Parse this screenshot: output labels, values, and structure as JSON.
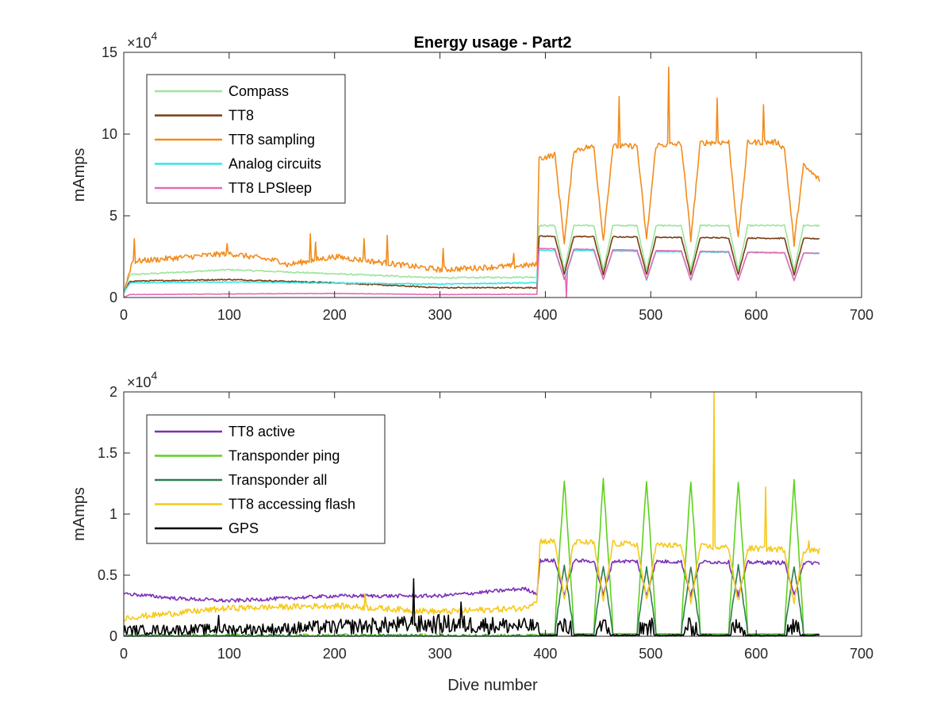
{
  "chart_data": [
    {
      "type": "line",
      "title": "Energy usage - Part2",
      "xlabel": "",
      "ylabel": "mAmps",
      "y_multiplier": "×10",
      "y_exponent": "4",
      "xlim": [
        0,
        700
      ],
      "ylim": [
        0,
        150000
      ],
      "xticks": [
        0,
        100,
        200,
        300,
        400,
        500,
        600,
        700
      ],
      "yticks": [
        0,
        50000,
        100000,
        150000
      ],
      "ytick_labels": [
        "0",
        "5",
        "10",
        "15"
      ],
      "grid": false,
      "legend_position": "top-left",
      "series": [
        {
          "name": "Compass",
          "color": "#9be59b",
          "shape": "step",
          "noise": 900,
          "spikes": [],
          "points": [
            [
              0,
              4000
            ],
            [
              6,
              14000
            ],
            [
              100,
              17000
            ],
            [
              200,
              14500
            ],
            [
              300,
              12000
            ],
            [
              392,
              12500
            ],
            [
              394,
              44000
            ],
            [
              660,
              44000
            ]
          ]
        },
        {
          "name": "TT8",
          "color": "#7a3b10",
          "shape": "step",
          "noise": 700,
          "spikes": [],
          "points": [
            [
              0,
              3000
            ],
            [
              6,
              10000
            ],
            [
              100,
              11000
            ],
            [
              200,
              9000
            ],
            [
              300,
              6000
            ],
            [
              392,
              6000
            ],
            [
              394,
              37500
            ],
            [
              660,
              36000
            ]
          ]
        },
        {
          "name": "TT8 sampling",
          "color": "#f28c1c",
          "shape": "step",
          "noise": 3500,
          "spikes": [
            [
              10,
              36000
            ],
            [
              98,
              33000
            ],
            [
              177,
              39000
            ],
            [
              182,
              34000
            ],
            [
              228,
              36000
            ],
            [
              250,
              38000
            ],
            [
              303,
              30000
            ],
            [
              370,
              27000
            ],
            [
              470,
              123000
            ],
            [
              517,
              141000
            ],
            [
              563,
              122000
            ],
            [
              607,
              118000
            ],
            [
              661,
              79000
            ]
          ],
          "points": [
            [
              0,
              3000
            ],
            [
              8,
              22000
            ],
            [
              100,
              27000
            ],
            [
              150,
              22000
            ],
            [
              155,
              20000
            ],
            [
              200,
              25000
            ],
            [
              250,
              21000
            ],
            [
              300,
              17000
            ],
            [
              392,
              20000
            ],
            [
              394,
              85000
            ],
            [
              440,
              92000
            ],
            [
              500,
              93000
            ],
            [
              560,
              95000
            ],
            [
              620,
              95000
            ],
            [
              660,
              72000
            ]
          ]
        },
        {
          "name": "Analog circuits",
          "color": "#33e5e5",
          "shape": "step",
          "noise": 600,
          "spikes": [],
          "points": [
            [
              0,
              3000
            ],
            [
              6,
              9000
            ],
            [
              100,
              9500
            ],
            [
              200,
              8800
            ],
            [
              300,
              8200
            ],
            [
              392,
              9000
            ],
            [
              394,
              29000
            ],
            [
              660,
              27000
            ]
          ]
        },
        {
          "name": "TT8 LPSleep",
          "color": "#e66ab5",
          "shape": "step",
          "noise": 300,
          "spikes": [
            [
              420,
              -3000
            ]
          ],
          "points": [
            [
              0,
              0
            ],
            [
              6,
              1800
            ],
            [
              200,
              2500
            ],
            [
              300,
              1800
            ],
            [
              392,
              2000
            ],
            [
              394,
              30000
            ],
            [
              660,
              27000
            ]
          ]
        }
      ]
    },
    {
      "type": "line",
      "title": "",
      "xlabel": "Dive number",
      "ylabel": "mAmps",
      "y_multiplier": "×10",
      "y_exponent": "4",
      "xlim": [
        0,
        700
      ],
      "ylim": [
        0,
        20000
      ],
      "xticks": [
        0,
        100,
        200,
        300,
        400,
        500,
        600,
        700
      ],
      "yticks": [
        0,
        5000,
        10000,
        15000,
        20000
      ],
      "ytick_labels": [
        "0",
        "0.5",
        "1",
        "1.5",
        "2"
      ],
      "grid": false,
      "legend_position": "top-left",
      "series": [
        {
          "name": "TT8 active",
          "color": "#7e2fb8",
          "shape": "dip",
          "noise": 300,
          "spikes": [],
          "points": [
            [
              0,
              3500
            ],
            [
              50,
              3100
            ],
            [
              100,
              2900
            ],
            [
              200,
              3300
            ],
            [
              300,
              3300
            ],
            [
              380,
              3900
            ],
            [
              392,
              3500
            ],
            [
              395,
              6200
            ],
            [
              660,
              6000
            ]
          ]
        },
        {
          "name": "Transponder ping",
          "color": "#5fd11f",
          "shape": "peak",
          "noise": 400,
          "spikes": [
            [
              396,
              17000
            ],
            [
              441,
              18200
            ],
            [
              474,
              18200
            ],
            [
              515,
              18100
            ],
            [
              605,
              12100
            ],
            [
              625,
              11300
            ]
          ],
          "points": [
            [
              0,
              1800
            ],
            [
              100,
              2200
            ],
            [
              200,
              2000
            ],
            [
              300,
              1800
            ],
            [
              392,
              1500
            ],
            [
              394,
              1000
            ],
            [
              660,
              800
            ]
          ]
        },
        {
          "name": "Transponder all",
          "color": "#2e7d4f",
          "shape": "peak",
          "noise": 300,
          "spikes": [
            [
              396,
              7200
            ],
            [
              441,
              8000
            ],
            [
              474,
              8000
            ],
            [
              515,
              8000
            ]
          ],
          "points": [
            [
              0,
              800
            ],
            [
              200,
              900
            ],
            [
              300,
              600
            ],
            [
              392,
              700
            ],
            [
              394,
              400
            ],
            [
              660,
              400
            ]
          ]
        },
        {
          "name": "TT8 accessing flash",
          "color": "#f7c81a",
          "shape": "step",
          "noise": 500,
          "spikes": [
            [
              229,
              3500
            ],
            [
              560,
              20000
            ],
            [
              609,
              12200
            ],
            [
              650,
              7800
            ]
          ],
          "points": [
            [
              0,
              1500
            ],
            [
              100,
              2300
            ],
            [
              200,
              2500
            ],
            [
              300,
              2000
            ],
            [
              380,
              2300
            ],
            [
              392,
              3000
            ],
            [
              395,
              7800
            ],
            [
              660,
              7000
            ]
          ]
        },
        {
          "name": "GPS",
          "color": "#000000",
          "shape": "burst",
          "noise": 900,
          "spikes": [
            [
              90,
              1700
            ],
            [
              275,
              4700
            ],
            [
              320,
              2800
            ]
          ],
          "points": [
            [
              0,
              500
            ],
            [
              150,
              600
            ],
            [
              175,
              700
            ],
            [
              300,
              1000
            ],
            [
              392,
              800
            ],
            [
              395,
              200
            ],
            [
              660,
              200
            ]
          ]
        }
      ]
    }
  ]
}
